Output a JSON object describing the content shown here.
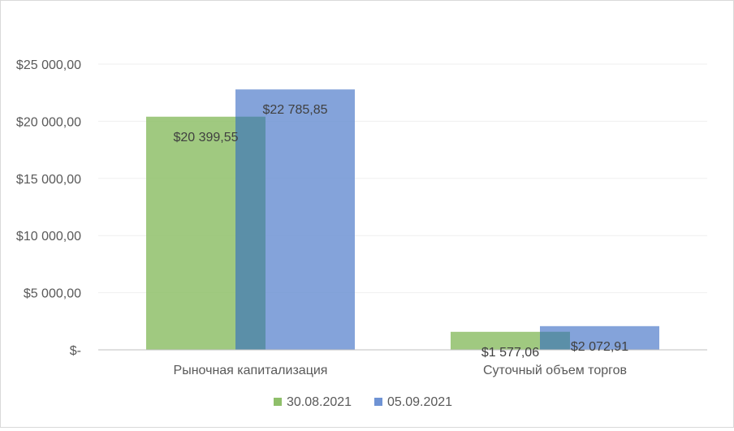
{
  "chart_data": {
    "type": "bar",
    "title": "",
    "xlabel": "",
    "ylabel": "",
    "categories": [
      "Рыночная капитализация",
      "Суточный объем торгов"
    ],
    "series": [
      {
        "name": "30.08.2021",
        "color": "#8fbf6a",
        "values": [
          20399.55,
          1577.06
        ],
        "labels": [
          "$20 399,55",
          "$1 577,06"
        ]
      },
      {
        "name": "05.09.2021",
        "color": "#6f93d4",
        "values": [
          22785.85,
          2072.91
        ],
        "labels": [
          "$22 785,85",
          "$2 072,91"
        ]
      }
    ],
    "ylim": [
      0,
      25000
    ],
    "yticks": [
      0,
      5000,
      10000,
      15000,
      20000,
      25000
    ],
    "ytick_labels": [
      "$-",
      "$5 000,00",
      "$10 000,00",
      "$15 000,00",
      "$20 000,00",
      "$25 000,00"
    ],
    "grid": true,
    "legend_position": "bottom",
    "overlap_color": "#5b8fa8",
    "axis_color": "#bfbfbf",
    "grid_color": "#efefef"
  }
}
